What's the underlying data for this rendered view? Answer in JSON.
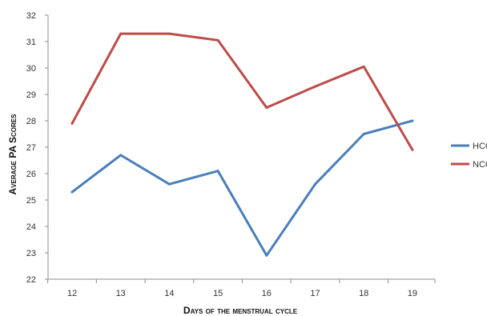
{
  "chart_data": {
    "type": "line",
    "title": "",
    "xlabel": "Days of the menstrual cycle",
    "ylabel": "Average PA Scores",
    "x": [
      12,
      13,
      14,
      15,
      16,
      17,
      18,
      19
    ],
    "ylim": [
      22,
      32
    ],
    "yticks": [
      22,
      23,
      24,
      25,
      26,
      27,
      28,
      29,
      30,
      31,
      32
    ],
    "grid": false,
    "legend_position": "right",
    "series": [
      {
        "name": "HCG",
        "color": "#4a7ebb",
        "values": [
          25.3,
          26.7,
          25.6,
          26.1,
          22.9,
          25.6,
          27.5,
          28.0
        ]
      },
      {
        "name": "NCG",
        "color": "#be4b48",
        "values": [
          27.9,
          31.3,
          31.3,
          31.05,
          28.5,
          29.3,
          30.05,
          26.9
        ]
      }
    ]
  }
}
